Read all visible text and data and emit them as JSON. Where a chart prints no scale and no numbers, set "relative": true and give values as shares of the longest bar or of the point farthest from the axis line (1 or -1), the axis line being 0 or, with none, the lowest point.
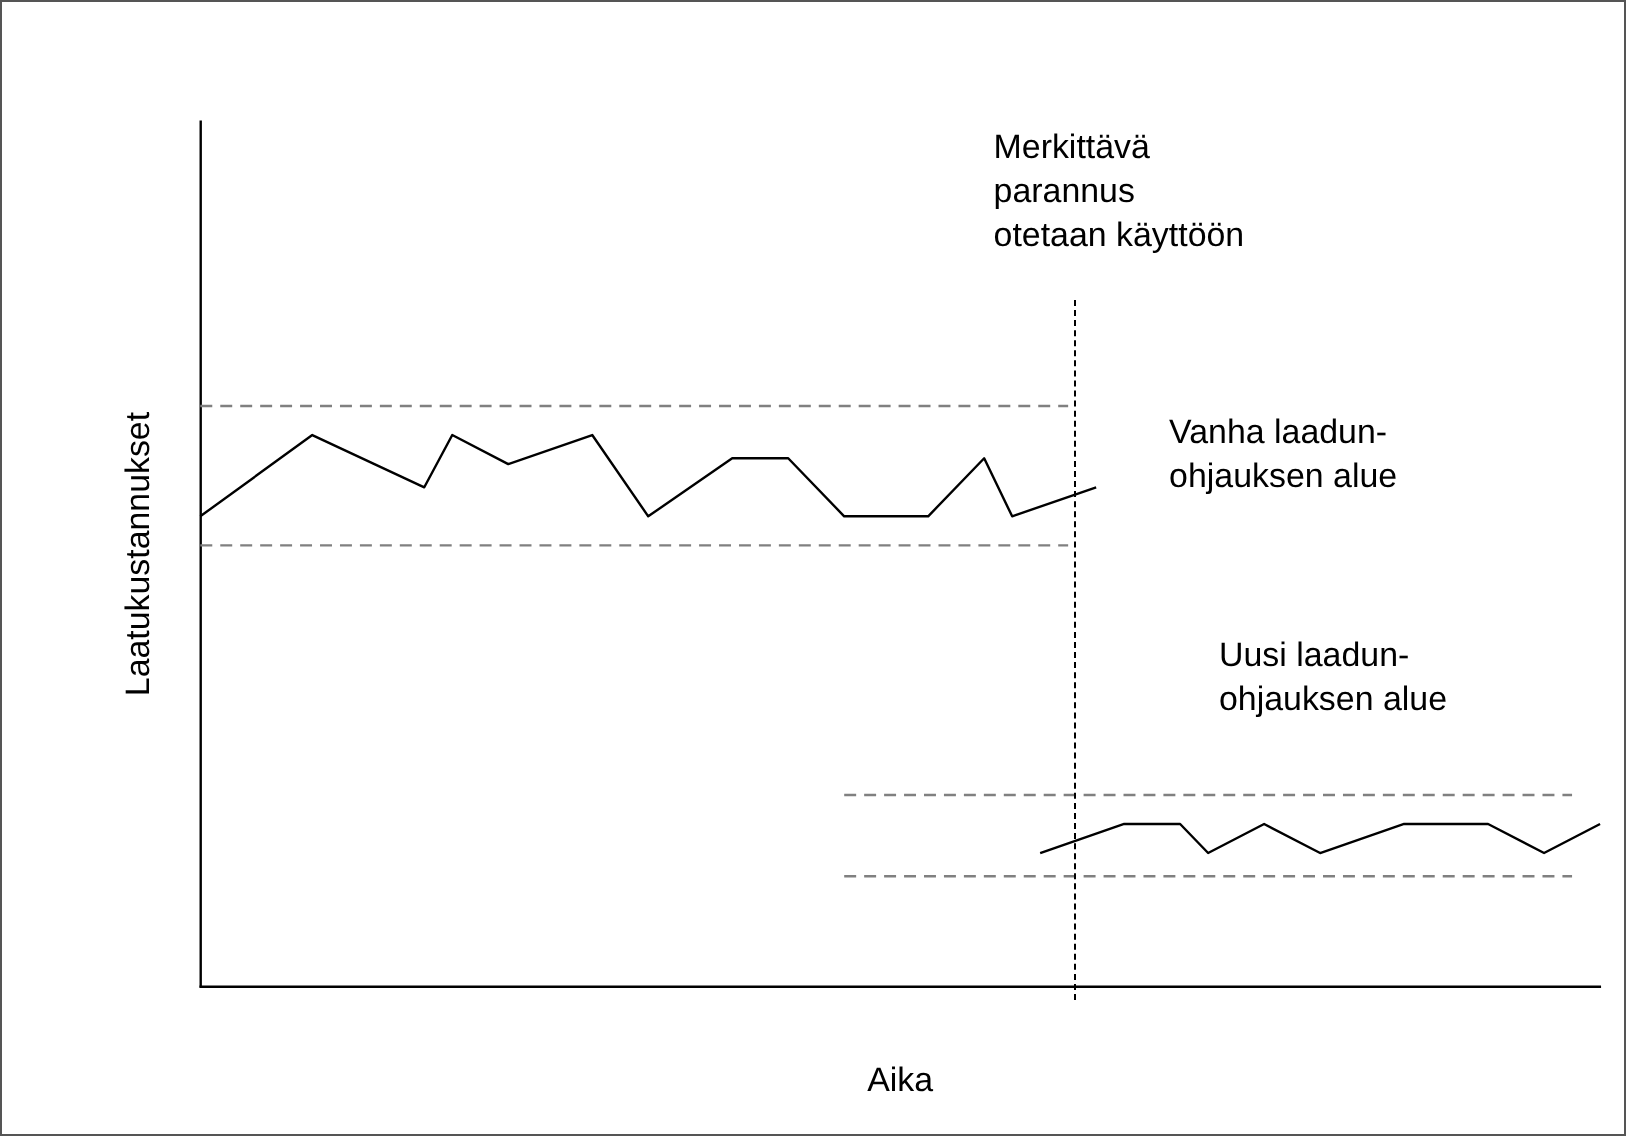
{
  "chart_data": {
    "type": "line",
    "relative": true,
    "xlabel": "Aika",
    "ylabel": "Laatukustannukset",
    "marker": "none",
    "categories": [
      null,
      null,
      null,
      null,
      null,
      null,
      null,
      null,
      null,
      null,
      null,
      null,
      null,
      null,
      null,
      null,
      null,
      null,
      null,
      null,
      null,
      null,
      null,
      null,
      null,
      null,
      null,
      null,
      null,
      null,
      null,
      null,
      null,
      null,
      null,
      null,
      null,
      null,
      null,
      null,
      null,
      null,
      null,
      null,
      null,
      null,
      null,
      null,
      null,
      null,
      null
    ],
    "series": [
      {
        "color": "#000000",
        "values": [
          0.81,
          null,
          null,
          null,
          0.95,
          null,
          null,
          null,
          0.86,
          0.95,
          null,
          0.9,
          null,
          null,
          0.95,
          null,
          0.81,
          null,
          null,
          0.91,
          null,
          0.91,
          null,
          0.81,
          null,
          null,
          0.81,
          null,
          0.91,
          0.81,
          null,
          null,
          0.86,
          null,
          null,
          null,
          null,
          null,
          null,
          null,
          null,
          null,
          null,
          null,
          null,
          null,
          null,
          null,
          null,
          null,
          null
        ]
      },
      {
        "color": "#000000",
        "values": [
          null,
          null,
          null,
          null,
          null,
          null,
          null,
          null,
          null,
          null,
          null,
          null,
          null,
          null,
          null,
          null,
          null,
          null,
          null,
          null,
          null,
          null,
          null,
          null,
          null,
          null,
          null,
          null,
          null,
          null,
          0.23,
          null,
          null,
          0.28,
          null,
          0.28,
          0.23,
          null,
          0.28,
          null,
          0.23,
          null,
          null,
          0.28,
          null,
          null,
          0.28,
          null,
          0.23,
          null,
          0.28
        ]
      },
      {
        "color": "#808080",
        "line_style": "dashed",
        "values": [
          1,
          null,
          null,
          null,
          null,
          null,
          null,
          null,
          null,
          null,
          null,
          null,
          null,
          null,
          null,
          null,
          null,
          null,
          null,
          null,
          null,
          null,
          null,
          null,
          null,
          null,
          null,
          null,
          null,
          null,
          null,
          1,
          null,
          null,
          null,
          null,
          null,
          null,
          null,
          null,
          null,
          null,
          null,
          null,
          null,
          null,
          null,
          null,
          null,
          null,
          null
        ]
      },
      {
        "color": "#808080",
        "line_style": "dashed",
        "values": [
          0.76,
          null,
          null,
          null,
          null,
          null,
          null,
          null,
          null,
          null,
          null,
          null,
          null,
          null,
          null,
          null,
          null,
          null,
          null,
          null,
          null,
          null,
          null,
          null,
          null,
          null,
          null,
          null,
          null,
          null,
          null,
          0.76,
          null,
          null,
          null,
          null,
          null,
          null,
          null,
          null,
          null,
          null,
          null,
          null,
          null,
          null,
          null,
          null,
          null,
          null,
          null
        ]
      },
      {
        "color": "#808080",
        "line_style": "dashed",
        "values": [
          null,
          null,
          null,
          null,
          null,
          null,
          null,
          null,
          null,
          null,
          null,
          null,
          null,
          null,
          null,
          null,
          null,
          null,
          null,
          null,
          null,
          null,
          null,
          0.33,
          null,
          null,
          null,
          null,
          null,
          null,
          null,
          null,
          null,
          null,
          null,
          null,
          null,
          null,
          null,
          null,
          null,
          null,
          null,
          null,
          null,
          null,
          null,
          null,
          null,
          0.33,
          null
        ]
      },
      {
        "color": "#808080",
        "line_style": "dashed",
        "values": [
          null,
          null,
          null,
          null,
          null,
          null,
          null,
          null,
          null,
          null,
          null,
          null,
          null,
          null,
          null,
          null,
          null,
          null,
          null,
          null,
          null,
          null,
          null,
          0.19,
          null,
          null,
          null,
          null,
          null,
          null,
          null,
          null,
          null,
          null,
          null,
          null,
          null,
          null,
          null,
          null,
          null,
          null,
          null,
          null,
          null,
          null,
          null,
          null,
          null,
          0.19,
          null
        ]
      }
    ],
    "annotations": [
      "Merkittävä\nparannus\notetaan käyttöön",
      "Vanha laadun-\nohjauksen alue",
      "Uusi laadun-\nohjauksen alue"
    ]
  }
}
